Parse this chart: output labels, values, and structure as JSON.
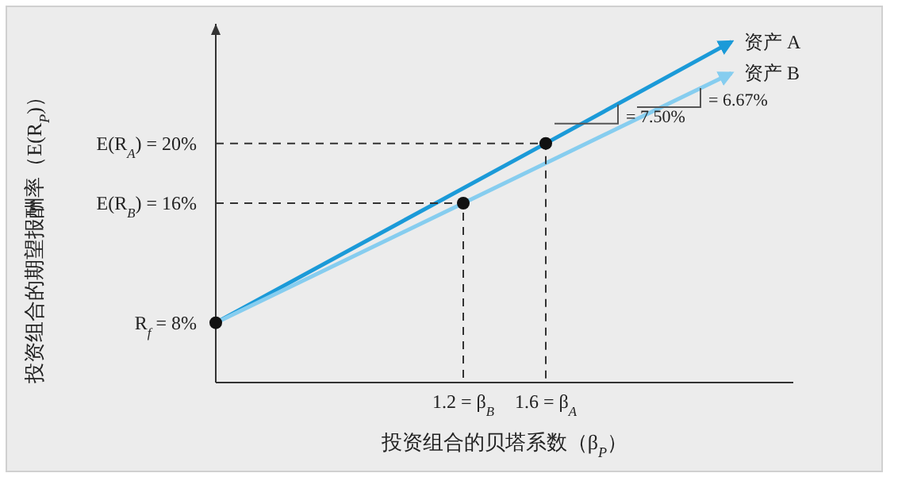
{
  "chart_data": {
    "type": "line",
    "xlabel": "投资组合的贝塔系数（β$_{P}$）",
    "ylabel": "投资组合的期望报酬率（E(R$_{P}$)）",
    "xlim": [
      0,
      2.8
    ],
    "ylim": [
      4,
      28
    ],
    "xticks": [
      {
        "value": 1.2,
        "label": "1.2 = β$_{B}$"
      },
      {
        "value": 1.6,
        "label": "1.6 = β$_{A}$"
      }
    ],
    "yticks": [
      {
        "value": 8,
        "label": "R$_{f}$ = 8%"
      },
      {
        "value": 16,
        "label": "E(R$_{B}$) = 16%"
      },
      {
        "value": 20,
        "label": "E(R$_{A}$) = 20%"
      }
    ],
    "series": [
      {
        "name": "资产 A",
        "color": "#1b9ad8",
        "x": [
          0,
          1.6,
          2.5
        ],
        "values": [
          8,
          20,
          26.8
        ]
      },
      {
        "name": "资产 B",
        "color": "#86cdef",
        "x": [
          0,
          1.2,
          2.5
        ],
        "values": [
          8,
          16,
          24.7
        ]
      },
      {
        "color": "#333333",
        "line_style": "dashed",
        "x": [
          0,
          1.2,
          1.2
        ],
        "values": [
          16,
          16,
          4
        ]
      },
      {
        "color": "#333333",
        "line_style": "dashed",
        "x": [
          0,
          1.6,
          1.6
        ],
        "values": [
          20,
          20,
          4
        ]
      },
      {
        "type": "scatter",
        "color": "#111111",
        "x": [
          0,
          1.2,
          1.6
        ],
        "values": [
          8,
          16,
          20
        ]
      }
    ],
    "annotations": [
      {
        "text": "= 7.50%",
        "x": 1.95,
        "y": 22.6
      },
      {
        "text": "= 6.67%",
        "x": 2.35,
        "y": 23.7
      }
    ],
    "grid": false,
    "legend": false
  }
}
